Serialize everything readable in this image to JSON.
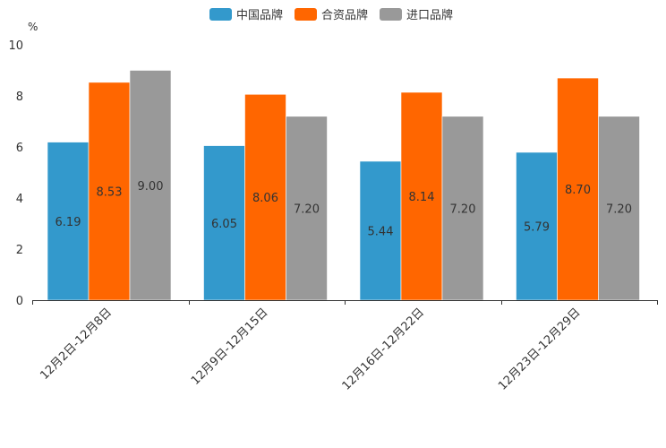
{
  "chart_data": {
    "type": "bar",
    "title": "",
    "xlabel": "",
    "ylabel": "",
    "unit_label": "%",
    "ylim": [
      0,
      10
    ],
    "yticks": [
      "0",
      "2",
      "4",
      "6",
      "8",
      "10"
    ],
    "categories": [
      "12月2日-12月8日",
      "12月9日-12月15日",
      "12月16日-12月22日",
      "12月23日-12月29日"
    ],
    "series": [
      {
        "name": "中国品牌",
        "color": "#3399cc",
        "values": [
          6.19,
          6.05,
          5.44,
          5.79
        ],
        "labels": [
          "6.19",
          "6.05",
          "5.44",
          "5.79"
        ]
      },
      {
        "name": "合资品牌",
        "color": "#ff6600",
        "values": [
          8.53,
          8.06,
          8.14,
          8.7
        ],
        "labels": [
          "8.53",
          "8.06",
          "8.14",
          "8.70"
        ]
      },
      {
        "name": "进口品牌",
        "color": "#999999",
        "values": [
          9.0,
          7.2,
          7.2,
          7.2
        ],
        "labels": [
          "9.00",
          "7.20",
          "7.20",
          "7.20"
        ]
      }
    ],
    "legend_position": "top-center",
    "grid": false
  }
}
